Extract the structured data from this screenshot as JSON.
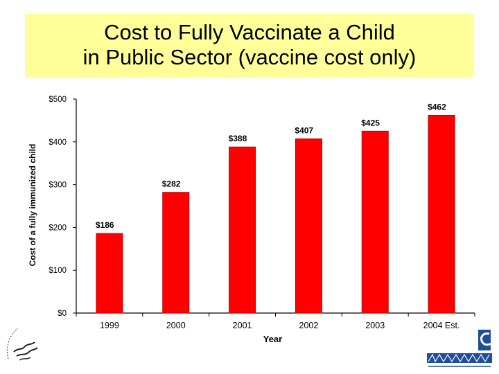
{
  "title": {
    "line1": "Cost to Fully Vaccinate a Child",
    "line2": "in Public Sector (vaccine cost only)"
  },
  "colors": {
    "title_band": "#ffff99",
    "bar": "#ff0000",
    "bar_edge": "#c00000"
  },
  "icons": {
    "seal": "hhs-seal-icon",
    "logo": "cdc-logo-icon"
  },
  "chart_data": {
    "type": "bar",
    "title": "",
    "xlabel": "Year",
    "ylabel": "Cost of a fully immunized child",
    "categories": [
      "1999",
      "2000",
      "2001",
      "2002",
      "2003",
      "2004 Est."
    ],
    "values": [
      186,
      282,
      388,
      407,
      425,
      462
    ],
    "data_labels": [
      "$186",
      "$282",
      "$388",
      "$407",
      "$425",
      "$462"
    ],
    "ylim": [
      0,
      500
    ],
    "yticks": [
      0,
      100,
      200,
      300,
      400,
      500
    ],
    "ytick_labels": [
      "$0",
      "$100",
      "$200",
      "$300",
      "$400",
      "$500"
    ],
    "grid": false,
    "legend": "none"
  }
}
